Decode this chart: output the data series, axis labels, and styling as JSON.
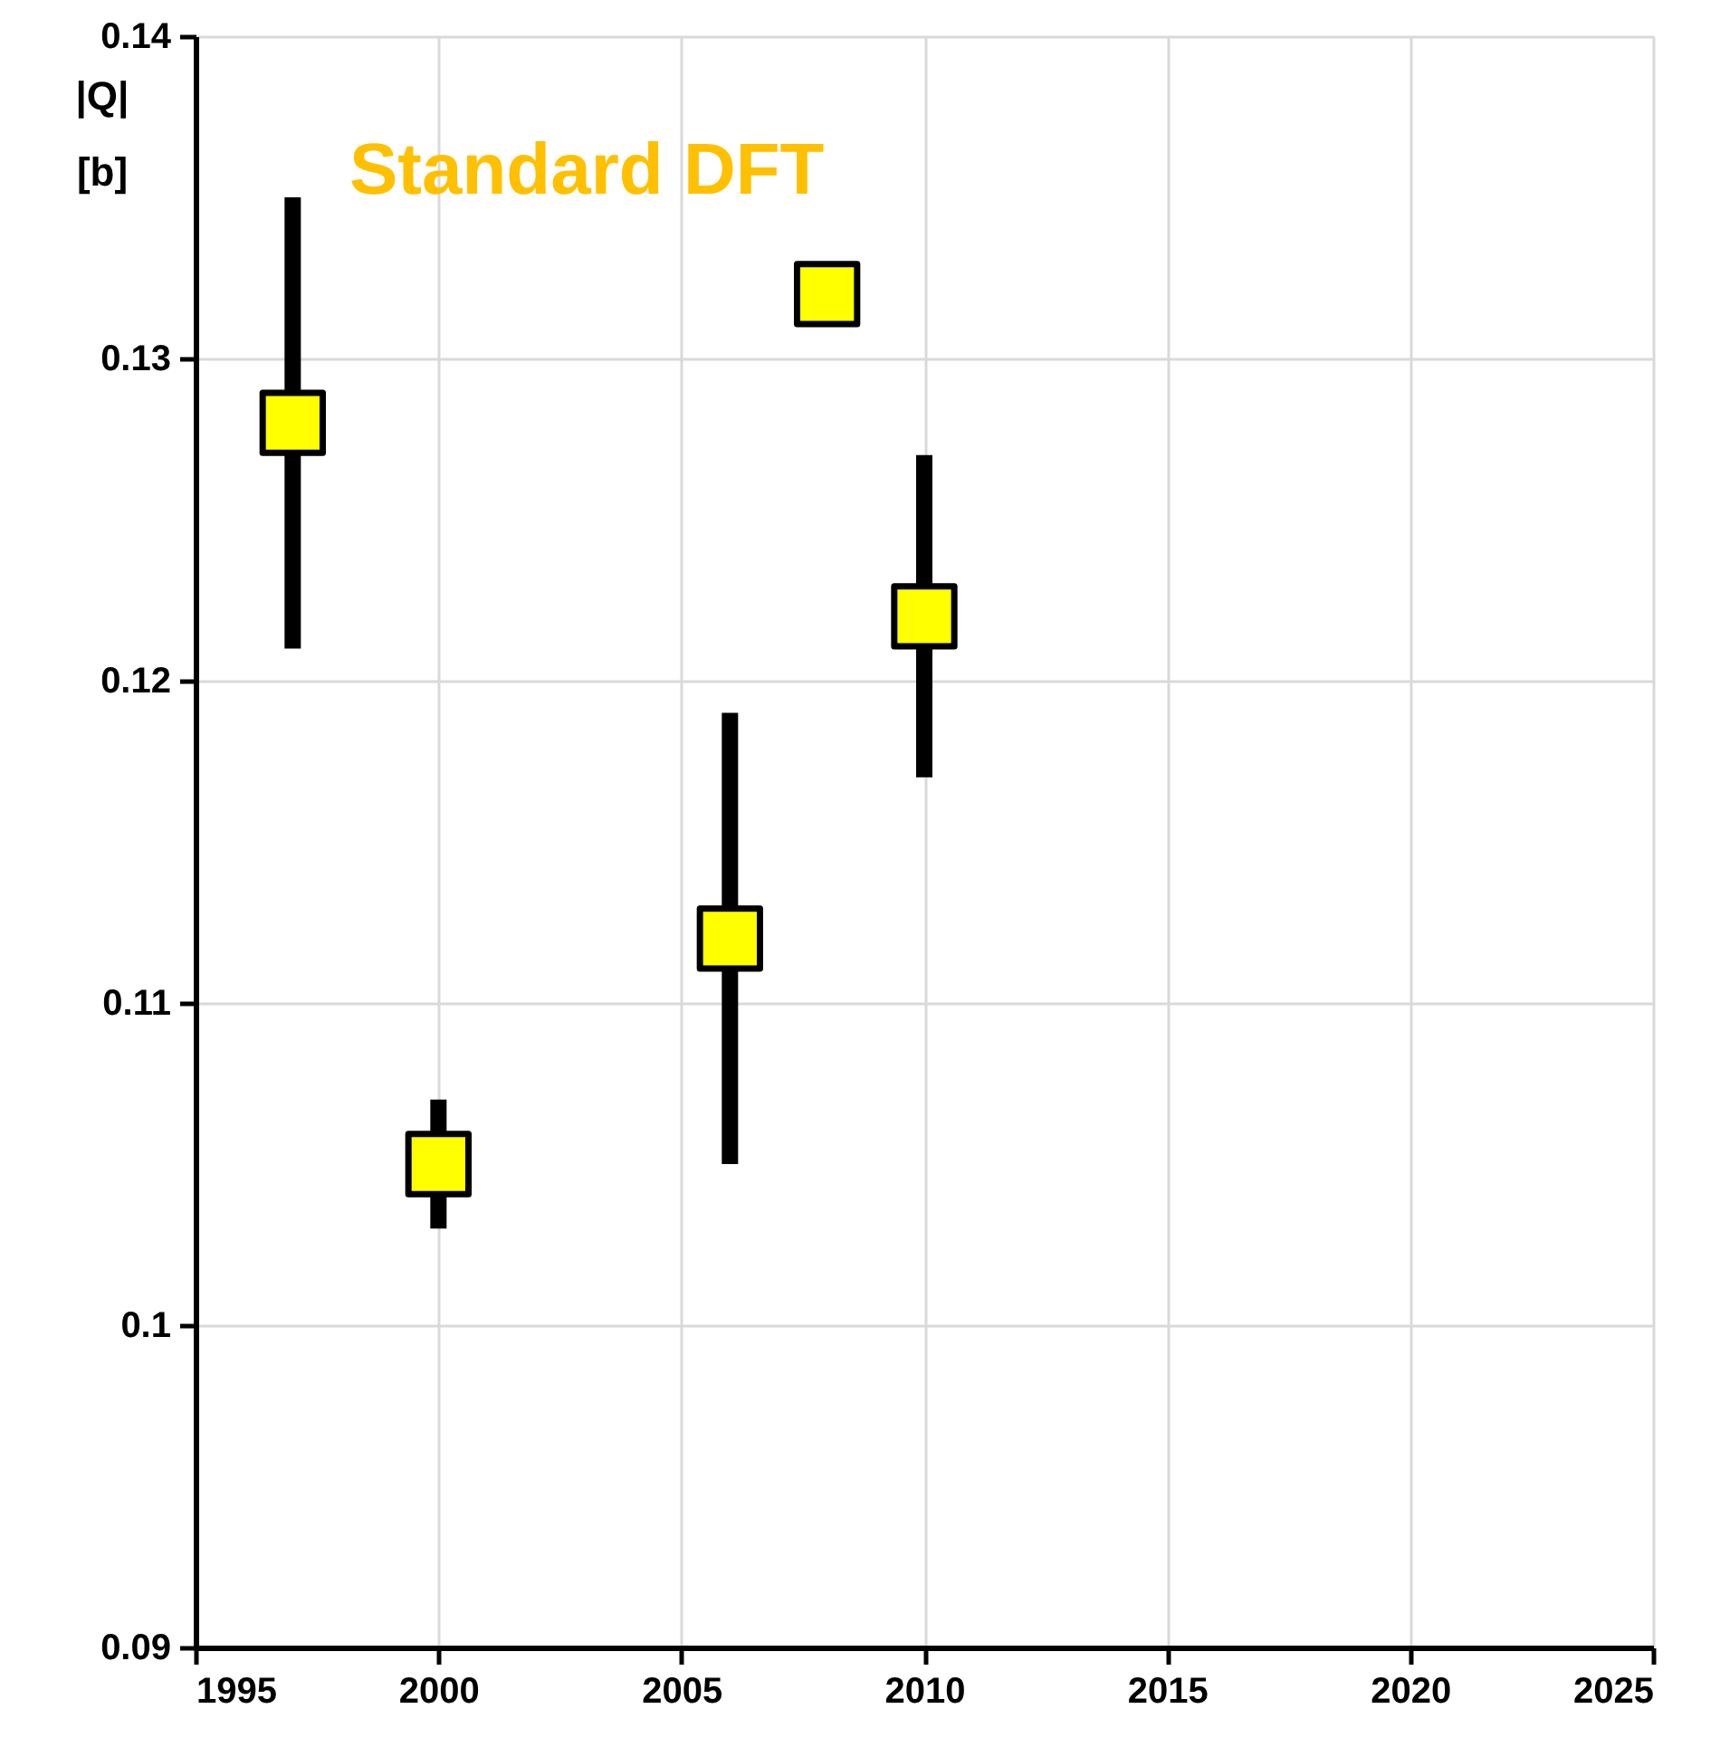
{
  "chart_data": {
    "type": "scatter",
    "ylabel": "|Q|\n[b]",
    "annotations": [
      "Standard DFT"
    ],
    "x": [
      1997,
      2000,
      2006,
      2008,
      2010
    ],
    "series": [
      {
        "color": "#ffff00",
        "values": [
          0.128,
          0.105,
          0.112,
          0.132,
          0.122
        ],
        "errors": [
          0.007,
          0.002,
          0.007,
          0.001,
          0.005
        ]
      }
    ],
    "xlim": [
      1995,
      2025
    ],
    "xticks": [
      1995,
      2000,
      2005,
      2010,
      2015,
      2020,
      2025
    ],
    "ylim": [
      0.09,
      0.14
    ],
    "yticks": [
      0.09,
      0.1,
      0.11,
      0.12,
      0.13,
      0.14
    ],
    "grid": true,
    "marker": "square"
  }
}
